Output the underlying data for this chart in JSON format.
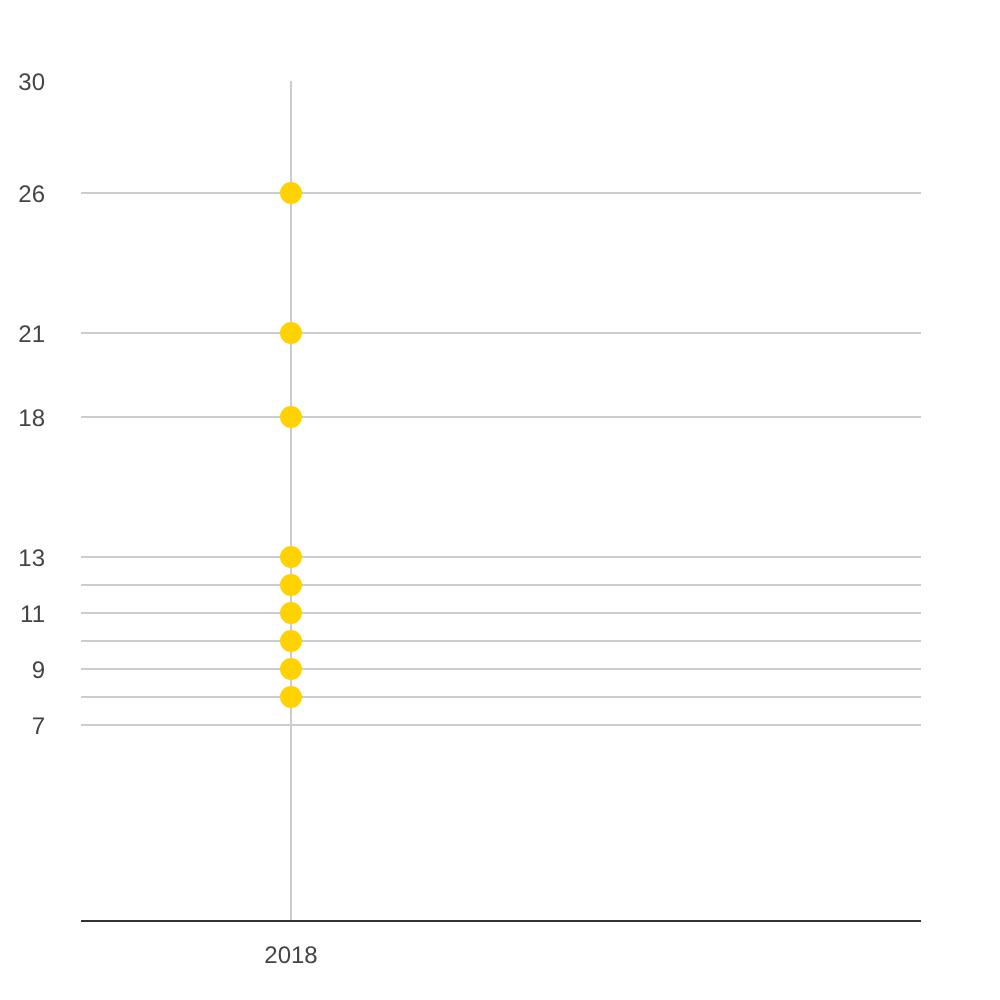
{
  "chart_data": {
    "type": "scatter",
    "categories": [
      "2018",
      null
    ],
    "series": [
      {
        "color": "#ffd200",
        "values": [
          26,
          null
        ]
      },
      {
        "color": "#ffd200",
        "values": [
          21,
          null
        ]
      },
      {
        "color": "#ffd200",
        "values": [
          18,
          null
        ]
      },
      {
        "color": "#ffd200",
        "values": [
          13,
          null
        ]
      },
      {
        "color": "#ffd200",
        "values": [
          12,
          null
        ]
      },
      {
        "color": "#ffd200",
        "values": [
          11,
          null
        ]
      },
      {
        "color": "#ffd200",
        "values": [
          10,
          null
        ]
      },
      {
        "color": "#ffd200",
        "values": [
          9,
          null
        ]
      },
      {
        "color": "#ffd200",
        "values": [
          8,
          null
        ]
      }
    ],
    "marker": "circle",
    "ylim": [
      0,
      30
    ],
    "yticks": [
      30,
      26,
      21,
      18,
      13,
      {
        "value": 12,
        "label": null
      },
      11,
      {
        "value": 10,
        "label": null
      },
      9,
      {
        "value": 8,
        "label": null
      },
      7
    ],
    "grid": true
  }
}
